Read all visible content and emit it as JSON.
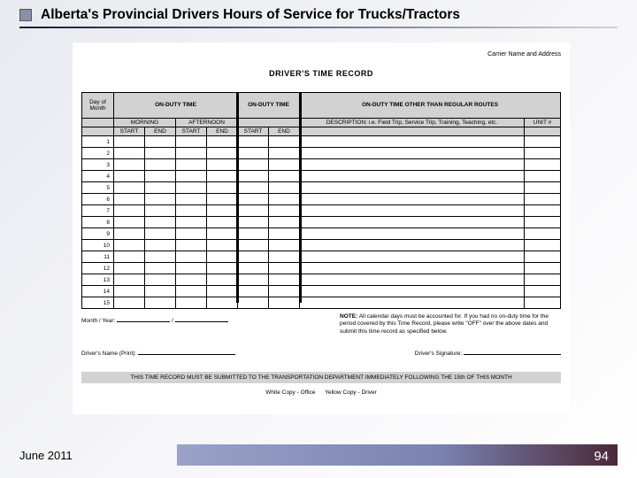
{
  "slide": {
    "title": "Alberta's Provincial Drivers Hours of Service for Trucks/Tractors",
    "date": "June 2011",
    "page_number": "94"
  },
  "doc": {
    "carrier_label": "Carrier Name and Address",
    "title": "DRIVER'S TIME RECORD",
    "headers": {
      "day_of_month": "Day of Month",
      "on_duty_time": "ON-DUTY TIME",
      "morning": "MORNING",
      "afternoon": "AFTERNOON",
      "on_duty_time2": "ON-DUTY TIME",
      "other": "ON-DUTY TIME OTHER THAN REGULAR ROUTES",
      "start": "START",
      "end": "END",
      "description": "DESCRIPTION: i.e. Field Trip, Service Trip, Training, Teaching, etc.",
      "unit": "UNIT #"
    },
    "days": [
      "1",
      "2",
      "3",
      "4",
      "5",
      "6",
      "7",
      "8",
      "9",
      "10",
      "11",
      "12",
      "13",
      "14",
      "15"
    ],
    "month_year_label": "Month / Year:",
    "slash": "/",
    "note_label": "NOTE:",
    "note_text": "All calendar days must be accounted for. If you had no on-duty time for the period covered by this Time Record, please write \"OFF\" over the above dates and submit this time record as specified below.",
    "driver_name_label": "Driver's Name (Print):",
    "driver_sig_label": "Driver's Signature:",
    "submit_text": "THIS TIME RECORD MUST BE SUBMITTED TO THE TRANSPORTATION DEPARTMENT IMMEDIATELY FOLLOWING THE 15th OF THIS MONTH",
    "white_copy": "White Copy - Office",
    "yellow_copy": "Yellow Copy - Driver"
  },
  "style": {
    "header_bg": "#d2d2d2",
    "border_color": "#000000"
  }
}
